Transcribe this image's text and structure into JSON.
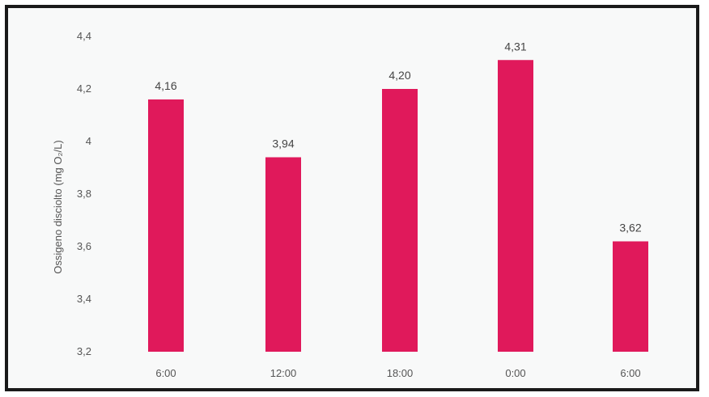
{
  "chart_data": {
    "type": "bar",
    "categories": [
      "6:00",
      "12:00",
      "18:00",
      "0:00",
      "6:00"
    ],
    "values": [
      4.16,
      3.94,
      4.2,
      4.31,
      3.62
    ],
    "data_labels": [
      "4,16",
      "3,94",
      "4,20",
      "4,31",
      "3,62"
    ],
    "title": "",
    "xlabel": "",
    "ylabel": "Ossigeno disciolto (mg O₂/L)",
    "ylim": [
      3.2,
      4.4
    ],
    "y_ticks": [
      3.2,
      3.4,
      3.6,
      3.8,
      4.0,
      4.2,
      4.4
    ],
    "y_tick_labels": [
      "3,2",
      "3,4",
      "3,6",
      "3,8",
      "4",
      "4,2",
      "4,4"
    ],
    "grid": false,
    "legend": "none",
    "bar_color": "#e0195b"
  }
}
